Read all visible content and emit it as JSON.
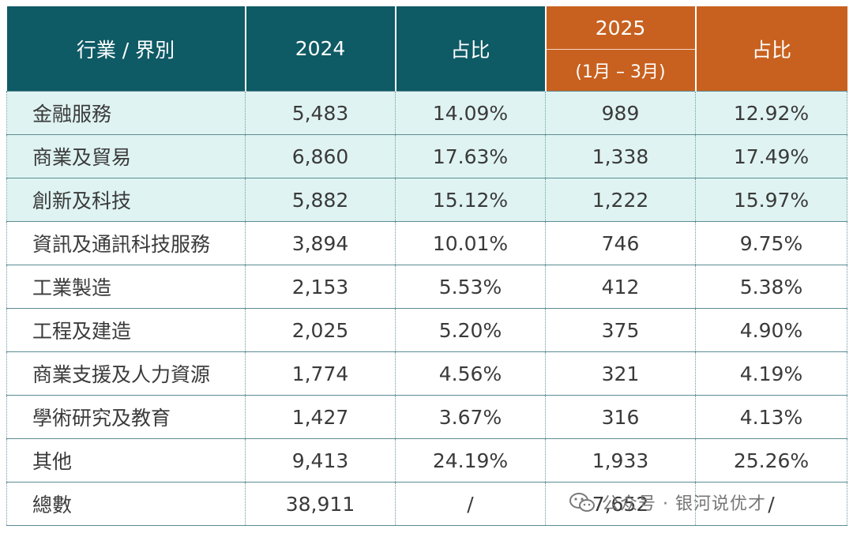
{
  "header": {
    "col_category": "行業 / 界別",
    "col_2024": "2024",
    "col_share_1": "占比",
    "col_2025_year": "2025",
    "col_2025_range": "(1月 – 3月)",
    "col_share_2": "占比"
  },
  "rows": [
    {
      "label": "金融服務",
      "v2024": "5,483",
      "s2024": "14.09%",
      "v2025": "989",
      "s2025": "12.92%"
    },
    {
      "label": "商業及貿易",
      "v2024": "6,860",
      "s2024": "17.63%",
      "v2025": "1,338",
      "s2025": "17.49%"
    },
    {
      "label": "創新及科技",
      "v2024": "5,882",
      "s2024": "15.12%",
      "v2025": "1,222",
      "s2025": "15.97%"
    },
    {
      "label": "資訊及通訊科技服務",
      "v2024": "3,894",
      "s2024": "10.01%",
      "v2025": "746",
      "s2025": "9.75%"
    },
    {
      "label": "工業製造",
      "v2024": "2,153",
      "s2024": "5.53%",
      "v2025": "412",
      "s2025": "5.38%"
    },
    {
      "label": "工程及建造",
      "v2024": "2,025",
      "s2024": "5.20%",
      "v2025": "375",
      "s2025": "4.90%"
    },
    {
      "label": "商業支援及人力資源",
      "v2024": "1,774",
      "s2024": "4.56%",
      "v2025": "321",
      "s2025": "4.19%"
    },
    {
      "label": "學術研究及教育",
      "v2024": "1,427",
      "s2024": "3.67%",
      "v2025": "316",
      "s2025": "4.13%"
    },
    {
      "label": "其他",
      "v2024": "9,413",
      "s2024": "24.19%",
      "v2025": "1,933",
      "s2025": "25.26%"
    },
    {
      "label": "總數",
      "v2024": "38,911",
      "s2024": "/",
      "v2025": "7,652",
      "s2025": "/"
    }
  ],
  "watermark": {
    "text": "公众号 · 银河说优才",
    "icon": "wechat-icon"
  },
  "colors": {
    "header_teal": "#0e5a65",
    "header_orange": "#c8611f",
    "highlight_row": "#dff4f2"
  }
}
